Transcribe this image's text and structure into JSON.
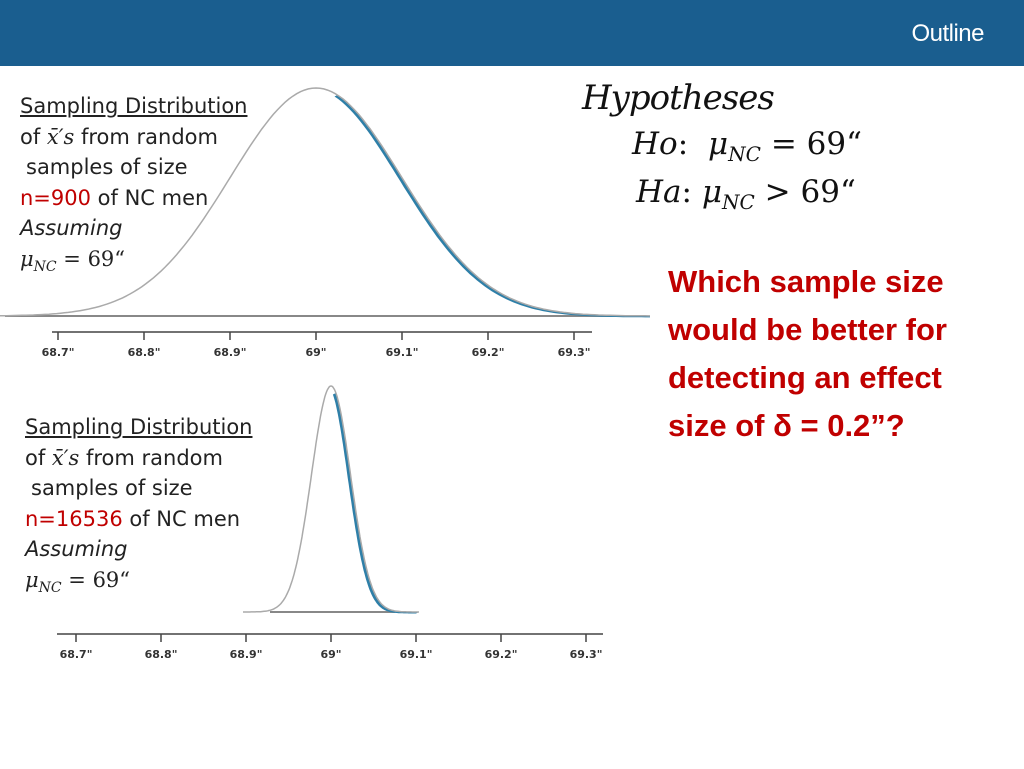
{
  "header": {
    "link_label": "Outline",
    "bg_color": "#1a5e8f"
  },
  "caption_top": {
    "line1": "Sampling Distribution",
    "line2_prefix": "of ",
    "xbar_symbol": "x̄′s",
    "line2_suffix": " from random",
    "line3": "samples of size",
    "n_label": "n=900",
    "line4_suffix": " of NC men",
    "assuming": "Assuming",
    "mu": "μ",
    "mu_sub": "NC",
    "equation_rhs": " = 69“"
  },
  "caption_bottom": {
    "line1": "Sampling Distribution",
    "line2_prefix": "of ",
    "xbar_symbol": "x̄′s",
    "line2_suffix": " from random",
    "line3": "samples of size",
    "n_label": "n=16536",
    "line4_suffix": " of NC men",
    "assuming": "Assuming",
    "mu": "μ",
    "mu_sub": "NC",
    "equation_rhs": " = 69“"
  },
  "hypotheses": {
    "title": "Hypotheses",
    "h0_label": "Ho",
    "h0_rest": ": ",
    "mu": "μ",
    "mu_sub": "NC",
    "h0_rhs": " = 69“",
    "ha_label": "Ha",
    "ha_rest": ": ",
    "ha_rhs": " > 69“"
  },
  "question": {
    "line1": "Which sample size",
    "line2": "would be better for",
    "line3": "detecting an effect",
    "line4": "size of δ = 0.2”?"
  },
  "chart_data": [
    {
      "type": "area",
      "distribution": "normal",
      "mean": 69,
      "sd": 0.1,
      "n": 900,
      "xlim": [
        68.7,
        69.3
      ],
      "tick_labels": [
        "68.7\"",
        "68.8\"",
        "68.9\"",
        "69\"",
        "69.1\"",
        "69.2\"",
        "69.3\""
      ],
      "tick_values": [
        68.7,
        68.8,
        68.9,
        69.0,
        69.1,
        69.2,
        69.3
      ],
      "shaded_color": "#2e7fa8"
    },
    {
      "type": "area",
      "distribution": "normal",
      "mean": 69,
      "sd": 0.023,
      "n": 16536,
      "xlim": [
        68.7,
        69.3
      ],
      "tick_labels": [
        "68.7\"",
        "68.8\"",
        "68.9\"",
        "69\"",
        "69.1\"",
        "69.2\"",
        "69.3\""
      ],
      "tick_values": [
        68.7,
        68.8,
        68.9,
        69.0,
        69.1,
        69.2,
        69.3
      ],
      "shaded_color": "#2e7fa8"
    }
  ]
}
